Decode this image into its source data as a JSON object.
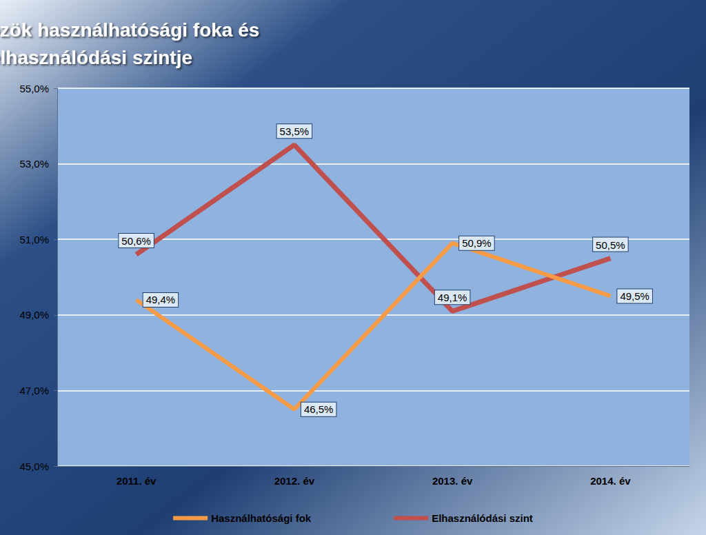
{
  "chart_data": {
    "type": "line",
    "title": "Az eszközök használhatósági foka és elhasználódási szintje",
    "categories": [
      "2011. év",
      "2012. év",
      "2013. év",
      "2014. év"
    ],
    "series": [
      {
        "name": "Használhatósági fok",
        "color": "#f79a46",
        "values": [
          49.4,
          46.5,
          50.9,
          49.5
        ],
        "value_labels": [
          "49,4%",
          "46,5%",
          "50,9%",
          "49,5%"
        ]
      },
      {
        "name": "Elhasználódási szint",
        "color": "#c0504d",
        "values": [
          50.6,
          53.5,
          49.1,
          50.5
        ],
        "value_labels": [
          "50,6%",
          "53,5%",
          "49,1%",
          "50,5%"
        ]
      }
    ],
    "ylim": [
      45,
      55
    ],
    "yticks": [
      {
        "value": 45,
        "label": "45,0%"
      },
      {
        "value": 47,
        "label": "47,0%"
      },
      {
        "value": 49,
        "label": "49,0%"
      },
      {
        "value": 51,
        "label": "51,0%"
      },
      {
        "value": 53,
        "label": "53,0%"
      },
      {
        "value": 55,
        "label": "55,0%"
      }
    ],
    "grid": true,
    "legend": "bottom",
    "data_labels": true
  }
}
